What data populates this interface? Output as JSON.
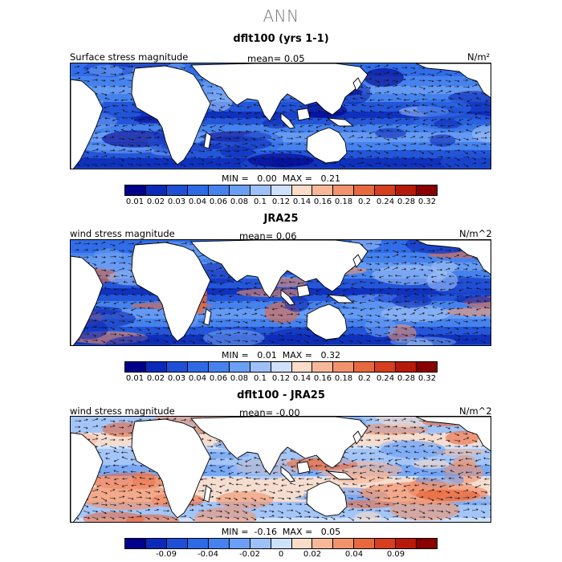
{
  "figure": {
    "title": "ANN"
  },
  "panels": [
    {
      "id": "model",
      "title": "dflt100 (yrs 1-1)",
      "left_label": "Surface stress magnitude",
      "mean_text": "mean=   0.05",
      "unit": "N/m²",
      "minmax_text": "MIN =   0.00  MAX =   0.21",
      "colorbar": {
        "colors": [
          "#00008b",
          "#0c2ab8",
          "#1f4fd6",
          "#2e6ae6",
          "#4682ee",
          "#6a9ff3",
          "#9cc0f7",
          "#cfe0fb",
          "#fbdcc8",
          "#f7b89a",
          "#f2936d",
          "#e8683f",
          "#d63e1d",
          "#b81a0a",
          "#8a0000"
        ],
        "tick_labels": [
          "0.01",
          "0.02",
          "0.03",
          "0.04",
          "0.06",
          "0.08",
          "0.1",
          "0.12",
          "0.14",
          "0.16",
          "0.18",
          "0.2",
          "0.24",
          "0.28",
          "0.32"
        ]
      }
    },
    {
      "id": "obs",
      "title": "JRA25",
      "left_label": "wind stress magnitude",
      "mean_text": "mean=   0.06",
      "unit": "N/m^2",
      "minmax_text": "MIN =   0.01  MAX =   0.32",
      "colorbar": {
        "colors": [
          "#00008b",
          "#0c2ab8",
          "#1f4fd6",
          "#2e6ae6",
          "#4682ee",
          "#6a9ff3",
          "#9cc0f7",
          "#cfe0fb",
          "#fbdcc8",
          "#f7b89a",
          "#f2936d",
          "#e8683f",
          "#d63e1d",
          "#b81a0a",
          "#8a0000"
        ],
        "tick_labels": [
          "0.01",
          "0.02",
          "0.03",
          "0.04",
          "0.06",
          "0.08",
          "0.1",
          "0.12",
          "0.14",
          "0.16",
          "0.18",
          "0.2",
          "0.24",
          "0.28",
          "0.32"
        ]
      }
    },
    {
      "id": "diff",
      "title": "dflt100 - JRA25",
      "left_label": "wind stress magnitude",
      "mean_text": "mean=   -0.00",
      "unit": "N/m^2",
      "minmax_text": "MIN =  -0.16  MAX =   0.05",
      "colorbar": {
        "colors": [
          "#00008b",
          "#0c2ab8",
          "#1f4fd6",
          "#2e6ae6",
          "#4682ee",
          "#6a9ff3",
          "#9cc0f7",
          "#cfe0fb",
          "#fbdcc8",
          "#f7b89a",
          "#f2936d",
          "#e8683f",
          "#d63e1d",
          "#b81a0a",
          "#8a0000"
        ],
        "tick_labels": [
          "-0.09",
          "-0.04",
          "-0.02",
          "0",
          "0.02",
          "0.04",
          "0.09"
        ]
      }
    }
  ],
  "colors": {
    "land": "#ffffff",
    "coast": "#000000",
    "arrow": "#111111",
    "title_gray": "#777777"
  }
}
